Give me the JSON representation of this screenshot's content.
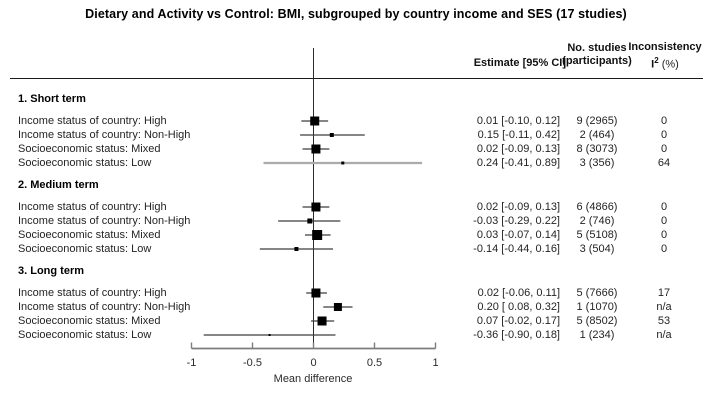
{
  "title": "Dietary and Activity vs Control: BMI, subgrouped by country income and SES (17 studies)",
  "header": {
    "estimate": "Estimate [95% CI]",
    "studies_line1": "No. studies",
    "studies_line2": "(participants)",
    "inconsistency_line1": "Inconsistency",
    "i2_base": "I",
    "i2_sup": "2",
    "i2_unit": " (%)"
  },
  "x_axis": {
    "label": "Mean difference",
    "tick_labels": [
      "-1",
      "-0.5",
      "0",
      "0.5",
      "1"
    ],
    "tick_values": [
      -1,
      -0.5,
      0,
      0.5,
      1
    ]
  },
  "chart_data": {
    "type": "forest",
    "title": "Dietary and Activity vs Control: BMI, subgrouped by country income and SES (17 studies)",
    "xlabel": "Mean difference",
    "xlim": [
      -1,
      1
    ],
    "reference_line": 0,
    "groups": [
      {
        "name": "1. Short term",
        "rows": [
          {
            "label": "Income status of country: High",
            "estimate": 0.01,
            "ci": [
              -0.1,
              0.12
            ],
            "estimate_text": "0.01 [-0.10, 0.12]",
            "studies_text": "9 (2965)",
            "i2": "0",
            "marker_size": 9
          },
          {
            "label": "Income status of country: Non-High",
            "estimate": 0.15,
            "ci": [
              -0.11,
              0.42
            ],
            "estimate_text": "0.15 [-0.11, 0.42]",
            "studies_text": "2 (464)",
            "i2": "0",
            "marker_size": 4
          },
          {
            "label": "Socioeconomic status: Mixed",
            "estimate": 0.02,
            "ci": [
              -0.09,
              0.13
            ],
            "estimate_text": "0.02 [-0.09, 0.13]",
            "studies_text": "8 (3073)",
            "i2": "0",
            "marker_size": 9
          },
          {
            "label": "Socioeconomic status: Low",
            "estimate": 0.24,
            "ci": [
              -0.41,
              0.89
            ],
            "estimate_text": "0.24 [-0.41, 0.89]",
            "studies_text": "3 (356)",
            "i2": "64",
            "marker_size": 3,
            "ci_style": "gray"
          }
        ]
      },
      {
        "name": "2. Medium term",
        "rows": [
          {
            "label": "Income status of country: High",
            "estimate": 0.02,
            "ci": [
              -0.09,
              0.13
            ],
            "estimate_text": "0.02 [-0.09, 0.13]",
            "studies_text": "6 (4866)",
            "i2": "0",
            "marker_size": 9
          },
          {
            "label": "Income status of country: Non-High",
            "estimate": -0.03,
            "ci": [
              -0.29,
              0.22
            ],
            "estimate_text": "-0.03 [-0.29, 0.22]",
            "studies_text": "2 (746)",
            "i2": "0",
            "marker_size": 5
          },
          {
            "label": "Socioeconomic status: Mixed",
            "estimate": 0.03,
            "ci": [
              -0.07,
              0.14
            ],
            "estimate_text": "0.03 [-0.07, 0.14]",
            "studies_text": "5 (5108)",
            "i2": "0",
            "marker_size": 10
          },
          {
            "label": "Socioeconomic status: Low",
            "estimate": -0.14,
            "ci": [
              -0.44,
              0.16
            ],
            "estimate_text": "-0.14 [-0.44, 0.16]",
            "studies_text": "3 (504)",
            "i2": "0",
            "marker_size": 4
          }
        ]
      },
      {
        "name": "3. Long term",
        "rows": [
          {
            "label": "Income status of country: High",
            "estimate": 0.02,
            "ci": [
              -0.06,
              0.11
            ],
            "estimate_text": "0.02 [-0.06, 0.11]",
            "studies_text": "5 (7666)",
            "i2": "17",
            "marker_size": 9
          },
          {
            "label": "Income status of country: Non-High",
            "estimate": 0.2,
            "ci": [
              0.08,
              0.32
            ],
            "estimate_text": "0.20 [ 0.08, 0.32]",
            "studies_text": "1 (1070)",
            "i2": "n/a",
            "marker_size": 8
          },
          {
            "label": "Socioeconomic status: Mixed",
            "estimate": 0.07,
            "ci": [
              -0.02,
              0.17
            ],
            "estimate_text": "0.07 [-0.02, 0.17]",
            "studies_text": "5 (8502)",
            "i2": "53",
            "marker_size": 9
          },
          {
            "label": "Socioeconomic status: Low",
            "estimate": -0.36,
            "ci": [
              -0.9,
              0.18
            ],
            "estimate_text": "-0.36 [-0.90, 0.18]",
            "studies_text": "1 (234)",
            "i2": "n/a",
            "marker_size": 2
          }
        ]
      }
    ]
  },
  "colors": {
    "marker": "#000000",
    "ci_line": "#3d3d3d",
    "ci_line_gray": "#ababab",
    "axis": "#7d7d7d",
    "zero_line": "#2b2b2b",
    "rule": "#1a1a1a"
  }
}
